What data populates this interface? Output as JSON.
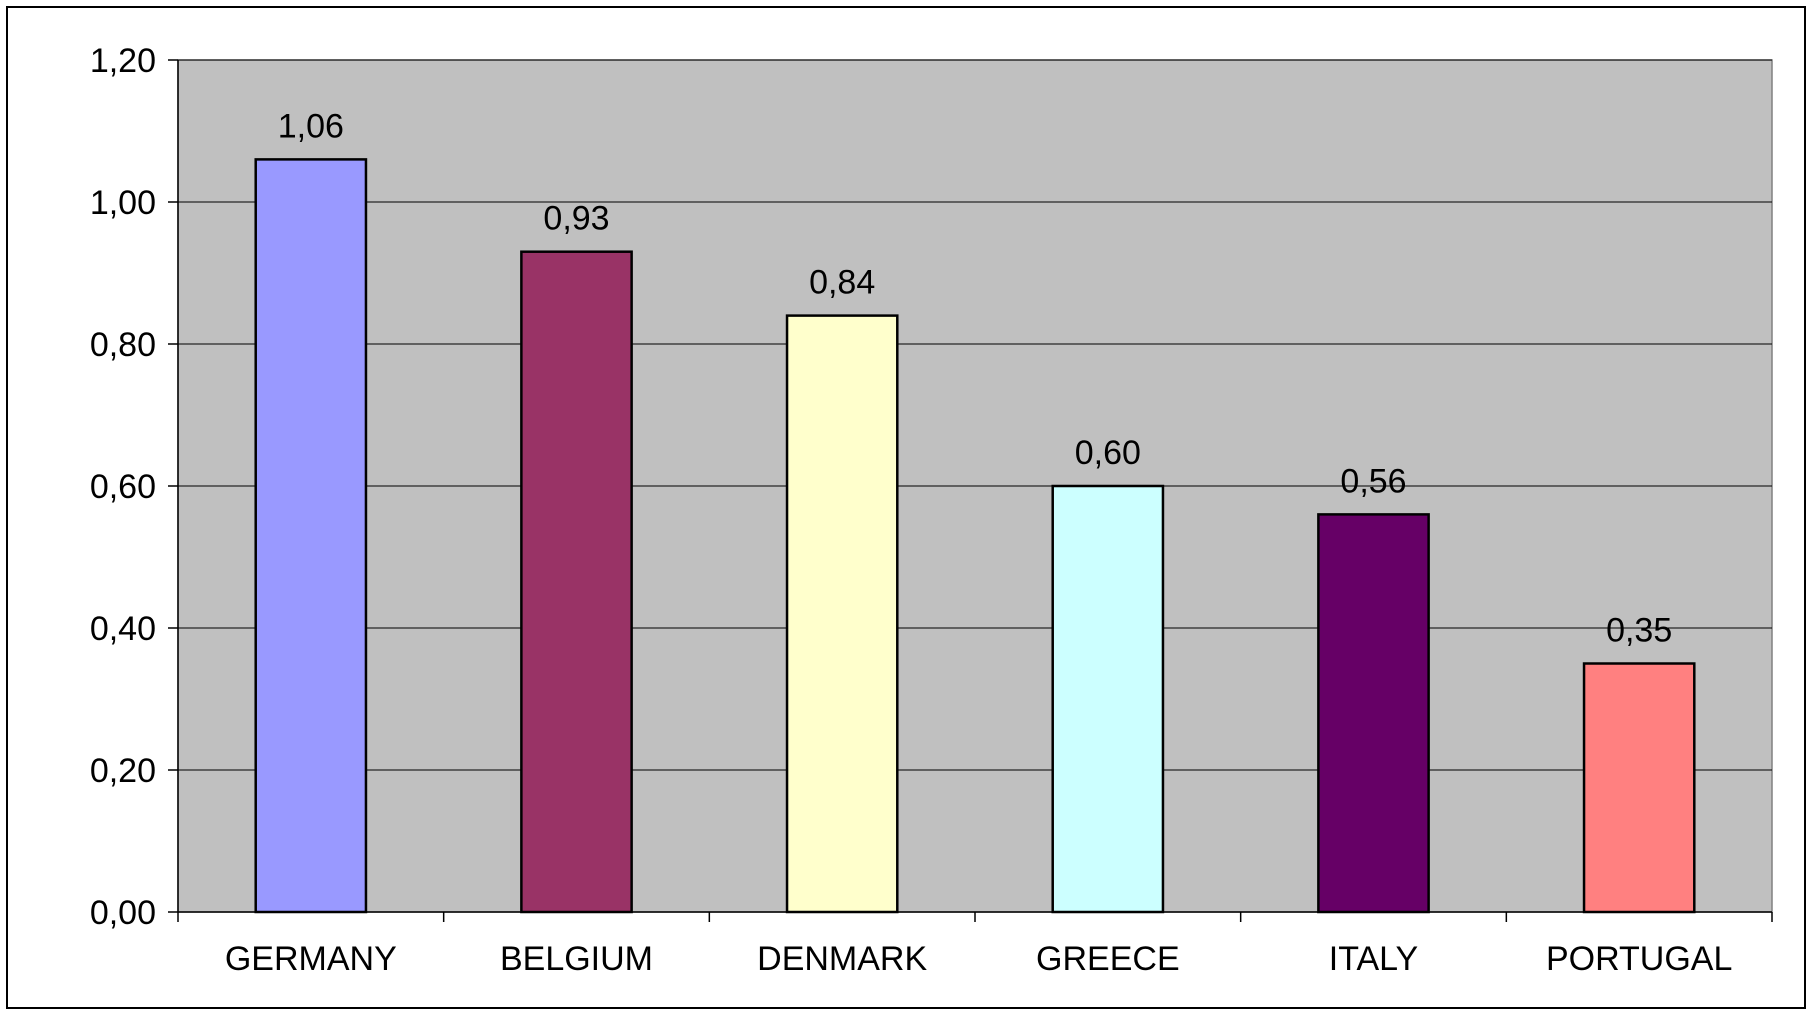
{
  "chart_data": {
    "type": "bar",
    "title": "",
    "xlabel": "",
    "ylabel": "",
    "categories": [
      "GERMANY",
      "BELGIUM",
      "DENMARK",
      "GREECE",
      "ITALY",
      "PORTUGAL"
    ],
    "values": [
      1.06,
      0.93,
      0.84,
      0.6,
      0.56,
      0.35
    ],
    "value_labels": [
      "1,06",
      "0,93",
      "0,84",
      "0,60",
      "0,56",
      "0,35"
    ],
    "bar_colors": [
      "#9999FF",
      "#993366",
      "#FFFFCC",
      "#CCFFFF",
      "#660066",
      "#FF8080"
    ],
    "ylim": [
      0,
      1.2
    ],
    "yticks": [
      0,
      0.2,
      0.4,
      0.6,
      0.8,
      1.0,
      1.2
    ],
    "ytick_labels": [
      "0,00",
      "0,20",
      "0,40",
      "0,60",
      "0,80",
      "1,00",
      "1,20"
    ],
    "grid": true,
    "legend": "none",
    "plot_background": "#C0C0C0",
    "gridline_color": "#000000"
  }
}
